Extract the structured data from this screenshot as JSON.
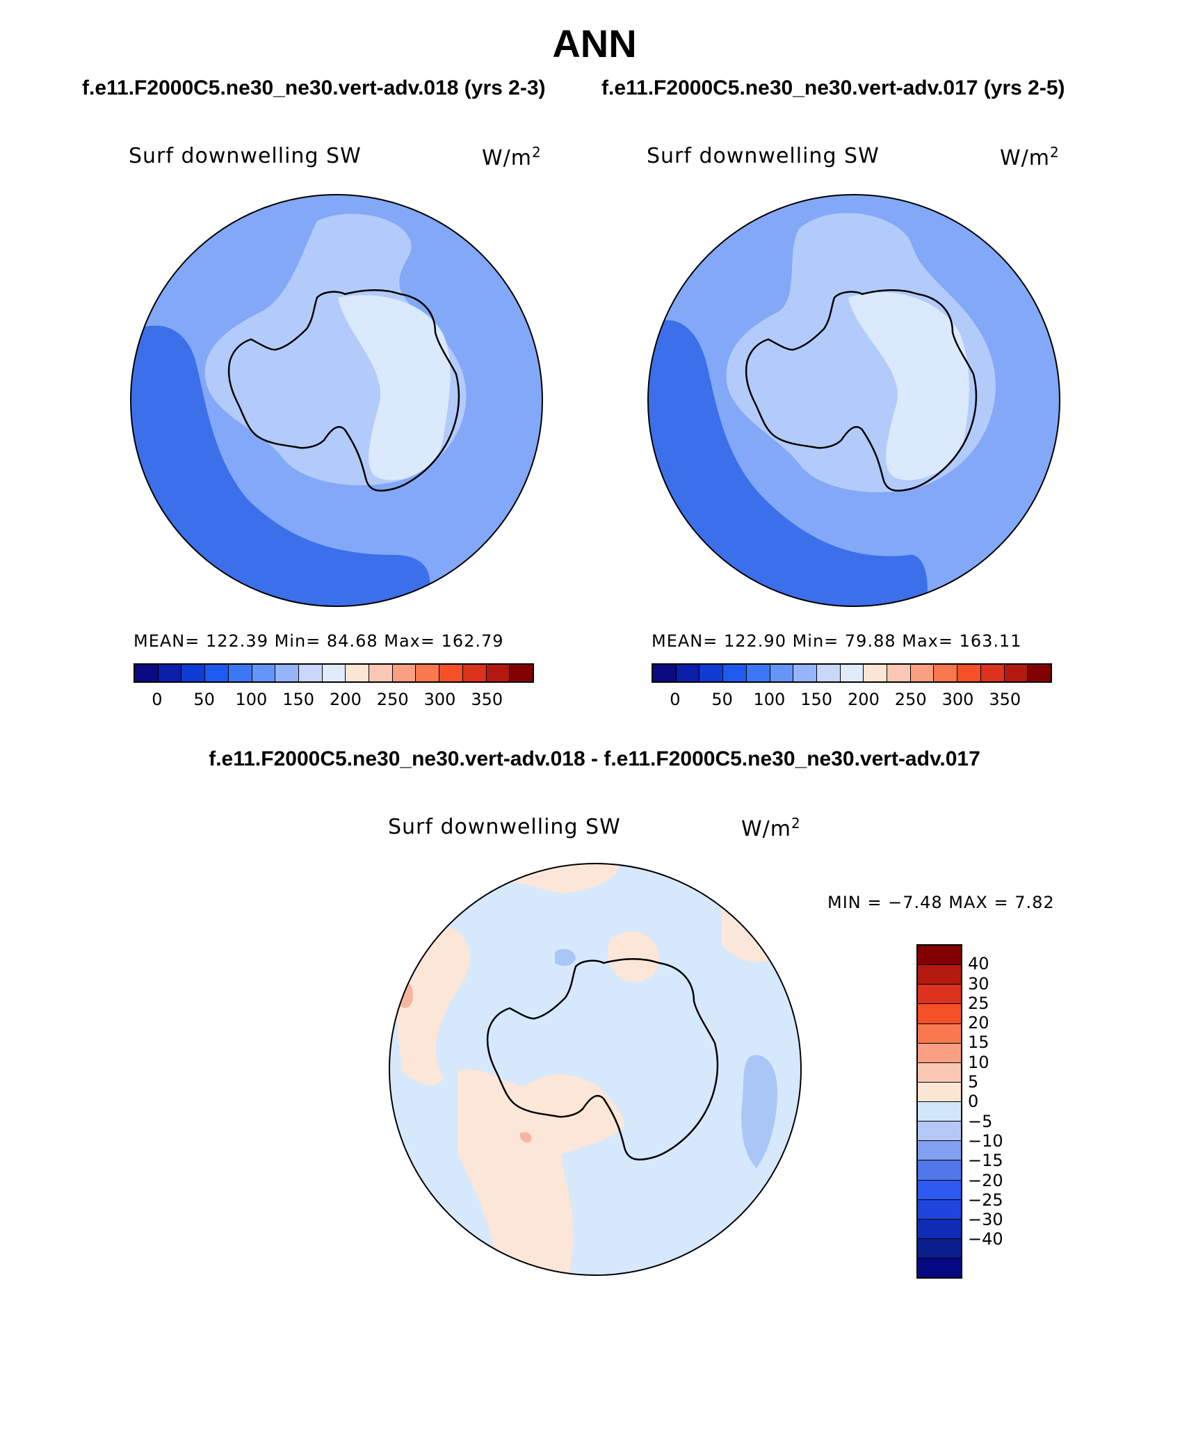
{
  "title": "ANN",
  "subtitles": {
    "left": "f.e11.F2000C5.ne30_ne30.vert-adv.018 (yrs 2-3)",
    "right": "f.e11.F2000C5.ne30_ne30.vert-adv.017 (yrs 2-5)"
  },
  "diff_title": "f.e11.F2000C5.ne30_ne30.vert-adv.018 - f.e11.F2000C5.ne30_ne30.vert-adv.017",
  "panels": [
    {
      "variable": "Surf downwelling SW",
      "units_base": "W/m",
      "units_exp": "2",
      "stats": "MEAN= 122.39   Min=   84.68   Max= 162.79"
    },
    {
      "variable": "Surf downwelling SW",
      "units_base": "W/m",
      "units_exp": "2",
      "stats": "MEAN= 122.90   Min=   79.88   Max= 163.11"
    }
  ],
  "diff_panel": {
    "variable": "Surf downwelling SW",
    "units_base": "W/m",
    "units_exp": "2",
    "stats": "MIN =   −7.48  MAX =     7.82"
  },
  "colorbar_main": {
    "colors": [
      "#0a0a82",
      "#0a1eaa",
      "#0f3cd2",
      "#1e5af0",
      "#3c78f5",
      "#6496fa",
      "#96b4fa",
      "#c8d7fa",
      "#e1ebfa",
      "#fae6d2",
      "#fac8b4",
      "#faa082",
      "#fa7850",
      "#f55028",
      "#dc321e",
      "#b4190f",
      "#820000"
    ],
    "ticks": [
      "0",
      "50",
      "100",
      "150",
      "200",
      "250",
      "300",
      "350"
    ]
  },
  "colorbar_diff": {
    "colors": [
      "#820000",
      "#b4190f",
      "#dc321e",
      "#f55028",
      "#fa7850",
      "#faa082",
      "#fac8b4",
      "#fae6d2",
      "#d2e6fa",
      "#b4c8f5",
      "#82a0f0",
      "#5078eb",
      "#2d5af0",
      "#1e46dc",
      "#0f2db4",
      "#0a1e8c",
      "#050a82"
    ],
    "ticks": [
      "40",
      "30",
      "25",
      "20",
      "15",
      "10",
      "5",
      "0",
      "−5",
      "−10",
      "−15",
      "−20",
      "−25",
      "−30",
      "−40"
    ]
  },
  "map_colors": {
    "deep": "#3c6fea",
    "mid": "#82a8f7",
    "light": "#b3cbfa",
    "lightest": "#dbe9fc",
    "diff_blue": "#d6e8fb",
    "diff_pink": "#fbe6d8",
    "diff_med_blue": "#aac6f7",
    "diff_red": "#f7b4a0"
  }
}
